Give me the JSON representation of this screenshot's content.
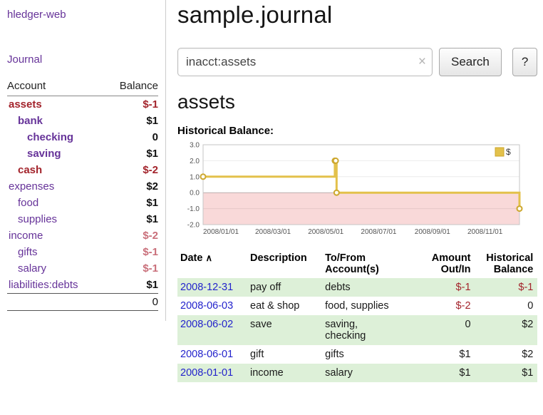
{
  "app_title": "hledger-web",
  "header": {
    "title": "sample.journal"
  },
  "sidebar": {
    "journal_link": "Journal",
    "accounts_table": {
      "account_header": "Account",
      "balance_header": "Balance",
      "rows": [
        {
          "name": "assets",
          "balance": "$-1",
          "indent": 0,
          "emph": true,
          "name_style": "negative",
          "balance_style": "negative"
        },
        {
          "name": "bank",
          "balance": "$1",
          "indent": 1,
          "emph": true,
          "name_style": "link",
          "balance_style": "normal"
        },
        {
          "name": "checking",
          "balance": "0",
          "indent": 2,
          "emph": true,
          "name_style": "link",
          "balance_style": "normal"
        },
        {
          "name": "saving",
          "balance": "$1",
          "indent": 2,
          "emph": true,
          "name_style": "link",
          "balance_style": "normal"
        },
        {
          "name": "cash",
          "balance": "$-2",
          "indent": 1,
          "emph": true,
          "name_style": "negative",
          "balance_style": "negative"
        },
        {
          "name": "expenses",
          "balance": "$2",
          "indent": 0,
          "emph": false,
          "name_style": "link",
          "balance_style": "normal"
        },
        {
          "name": "food",
          "balance": "$1",
          "indent": 1,
          "emph": false,
          "name_style": "link",
          "balance_style": "normal"
        },
        {
          "name": "supplies",
          "balance": "$1",
          "indent": 1,
          "emph": false,
          "name_style": "link",
          "balance_style": "normal"
        },
        {
          "name": "income",
          "balance": "$-2",
          "indent": 0,
          "emph": false,
          "name_style": "link",
          "balance_style": "soft"
        },
        {
          "name": "gifts",
          "balance": "$-1",
          "indent": 1,
          "emph": false,
          "name_style": "link",
          "balance_style": "soft"
        },
        {
          "name": "salary",
          "balance": "$-1",
          "indent": 1,
          "emph": false,
          "name_style": "link",
          "balance_style": "soft"
        },
        {
          "name": "liabilities:debts",
          "balance": "$1",
          "indent": 0,
          "emph": false,
          "name_style": "link",
          "balance_style": "normal"
        }
      ],
      "total": "0"
    }
  },
  "search": {
    "value": "inacct:assets",
    "clear_icon": "×",
    "button_label": "Search",
    "help_label": "?"
  },
  "register": {
    "heading": "assets",
    "chart_title": "Historical Balance:"
  },
  "chart_data": {
    "type": "line",
    "step": true,
    "title": "Historical Balance",
    "legend": {
      "label": "$",
      "position": "top-right"
    },
    "x_start": "2008-01-01",
    "x_end": "2008-12-31",
    "ylim": [
      -2,
      3
    ],
    "yticks": [
      3.0,
      2.0,
      1.0,
      0.0,
      -1.0,
      -2.0
    ],
    "xtick_labels": [
      "2008/01/01",
      "2008/03/01",
      "2008/05/01",
      "2008/07/01",
      "2008/09/01",
      "2008/11/01"
    ],
    "series": [
      {
        "name": "$",
        "points": [
          {
            "date": "2008-01-01",
            "value": 1
          },
          {
            "date": "2008-06-01",
            "value": 2
          },
          {
            "date": "2008-06-02",
            "value": 2
          },
          {
            "date": "2008-06-03",
            "value": 0
          },
          {
            "date": "2008-12-31",
            "value": -1
          }
        ]
      }
    ],
    "colors": {
      "line": "#e3c14b",
      "marker": "#cda72e",
      "negative_region": "#f9d9d9"
    }
  },
  "transactions": {
    "headers": {
      "date": "Date",
      "sort_indicator": "∧",
      "description": "Description",
      "account": "To/From Account(s)",
      "amount": "Amount Out/In",
      "balance": "Historical Balance"
    },
    "rows": [
      {
        "date": "2008-12-31",
        "description": "pay off",
        "account": "debts",
        "amount": "$-1",
        "balance": "$-1",
        "amount_negative": true,
        "balance_negative": true,
        "shaded": true
      },
      {
        "date": "2008-06-03",
        "description": "eat & shop",
        "account": "food, supplies",
        "amount": "$-2",
        "balance": "0",
        "amount_negative": true,
        "balance_negative": false,
        "shaded": false
      },
      {
        "date": "2008-06-02",
        "description": "save",
        "account": "saving,\nchecking",
        "amount": "0",
        "balance": "$2",
        "amount_negative": false,
        "balance_negative": false,
        "shaded": true
      },
      {
        "date": "2008-06-01",
        "description": "gift",
        "account": "gifts",
        "amount": "$1",
        "balance": "$2",
        "amount_negative": false,
        "balance_negative": false,
        "shaded": false
      },
      {
        "date": "2008-01-01",
        "description": "income",
        "account": "salary",
        "amount": "$1",
        "balance": "$1",
        "amount_negative": false,
        "balance_negative": false,
        "shaded": true
      }
    ]
  },
  "colors": {
    "link_purple": "#663399",
    "negative_red": "#a3242c",
    "soft_negative": "#c96f7a",
    "date_blue": "#2323cc",
    "row_green": "#ddf0d8",
    "chart_line_gold": "#e3c14b",
    "chart_negative_fill": "#f9d9d9"
  }
}
